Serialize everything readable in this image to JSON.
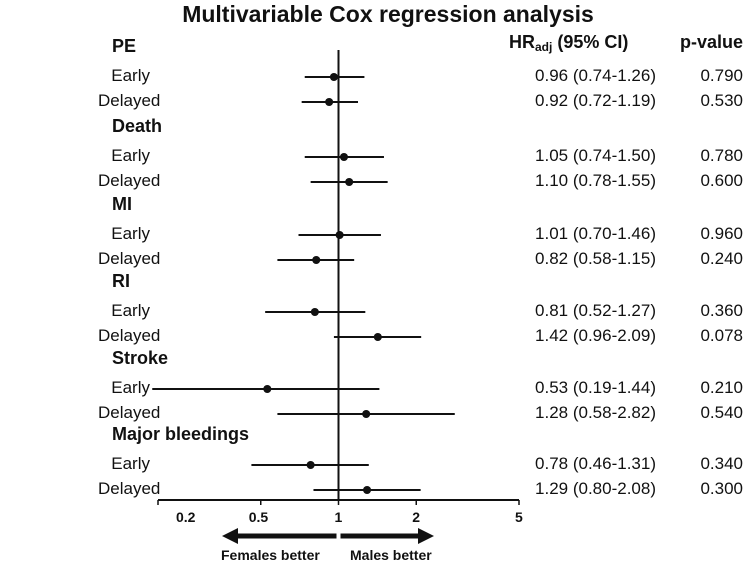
{
  "title": "Multivariable Cox regression analysis",
  "headers": {
    "hr_main": "HR",
    "hr_sub": "adj",
    "hr_ci": " (95% CI)",
    "pvalue": "p-value"
  },
  "direction_labels": {
    "left": "Females better",
    "right": "Males better"
  },
  "chart_data": {
    "type": "forest",
    "x_scale": "log",
    "xlim": [
      0.2,
      5
    ],
    "xticks": [
      0.2,
      0.5,
      1,
      2,
      5
    ],
    "xtick_labels": [
      "0.2",
      "0.5",
      "1",
      "2",
      "5"
    ],
    "reference_line": 1,
    "colors": {
      "marker": "#111111",
      "line": "#111111"
    },
    "groups": [
      {
        "name": "PE",
        "rows": [
          {
            "label": "Early",
            "hr": 0.96,
            "lo": 0.74,
            "hi": 1.26,
            "hr_text": "0.96 (0.74-1.26)",
            "p": "0.790"
          },
          {
            "label": "Delayed",
            "hr": 0.92,
            "lo": 0.72,
            "hi": 1.19,
            "hr_text": "0.92 (0.72-1.19)",
            "p": "0.530"
          }
        ]
      },
      {
        "name": "Death",
        "rows": [
          {
            "label": "Early",
            "hr": 1.05,
            "lo": 0.74,
            "hi": 1.5,
            "hr_text": "1.05 (0.74-1.50)",
            "p": "0.780"
          },
          {
            "label": "Delayed",
            "hr": 1.1,
            "lo": 0.78,
            "hi": 1.55,
            "hr_text": "1.10 (0.78-1.55)",
            "p": "0.600"
          }
        ]
      },
      {
        "name": "MI",
        "rows": [
          {
            "label": "Early",
            "hr": 1.01,
            "lo": 0.7,
            "hi": 1.46,
            "hr_text": "1.01 (0.70-1.46)",
            "p": "0.960"
          },
          {
            "label": "Delayed",
            "hr": 0.82,
            "lo": 0.58,
            "hi": 1.15,
            "hr_text": "0.82 (0.58-1.15)",
            "p": "0.240"
          }
        ]
      },
      {
        "name": "RI",
        "rows": [
          {
            "label": "Early",
            "hr": 0.81,
            "lo": 0.52,
            "hi": 1.27,
            "hr_text": "0.81 (0.52-1.27)",
            "p": "0.360"
          },
          {
            "label": "Delayed",
            "hr": 1.42,
            "lo": 0.96,
            "hi": 2.09,
            "hr_text": "1.42 (0.96-2.09)",
            "p": "0.078"
          }
        ]
      },
      {
        "name": "Stroke",
        "rows": [
          {
            "label": "Early",
            "hr": 0.53,
            "lo": 0.19,
            "hi": 1.44,
            "hr_text": "0.53 (0.19-1.44)",
            "p": "0.210"
          },
          {
            "label": "Delayed",
            "hr": 1.28,
            "lo": 0.58,
            "hi": 2.82,
            "hr_text": "1.28 (0.58-2.82)",
            "p": "0.540"
          }
        ]
      },
      {
        "name": "Major bleedings",
        "rows": [
          {
            "label": "Early",
            "hr": 0.78,
            "lo": 0.46,
            "hi": 1.31,
            "hr_text": "0.78 (0.46-1.31)",
            "p": "0.340"
          },
          {
            "label": "Delayed",
            "hr": 1.29,
            "lo": 0.8,
            "hi": 2.08,
            "hr_text": "1.29 (0.80-2.08)",
            "p": "0.300"
          }
        ]
      }
    ]
  }
}
